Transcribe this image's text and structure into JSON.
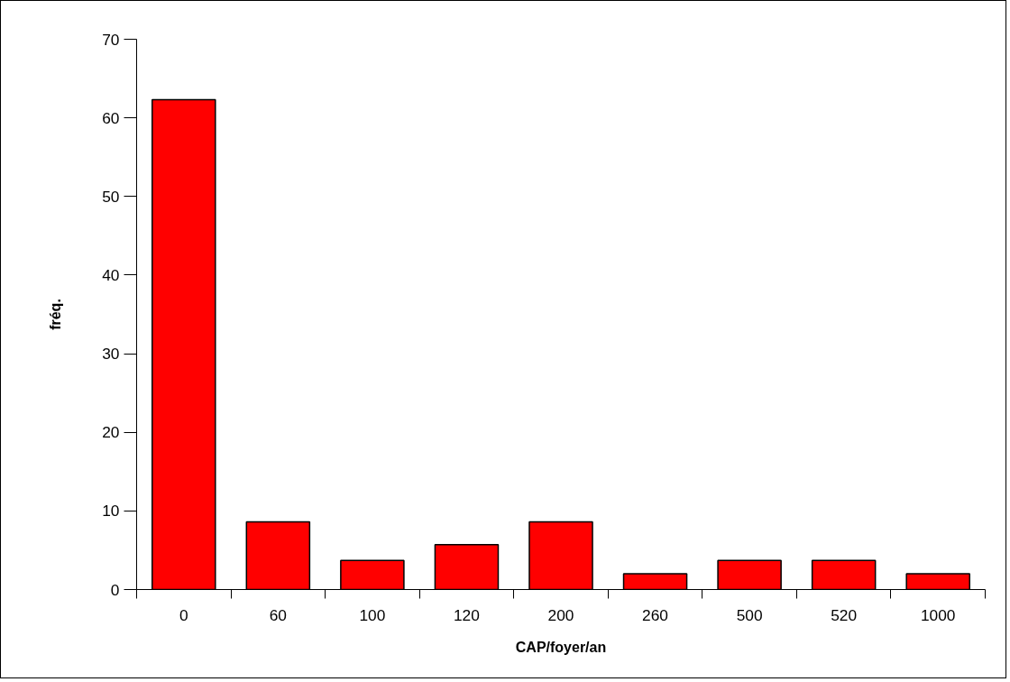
{
  "chart_data": {
    "type": "bar",
    "xlabel": "CAP/foyer/an",
    "ylabel": "fréq.",
    "categories": [
      "0",
      "60",
      "100",
      "120",
      "200",
      "260",
      "500",
      "520",
      "1000"
    ],
    "values": [
      62.3,
      8.6,
      3.7,
      5.7,
      8.6,
      2,
      3.7,
      3.7,
      2
    ],
    "color": "#ff0000",
    "ylim": [
      0,
      70
    ],
    "yticks": [
      0,
      10,
      20,
      30,
      40,
      50,
      60,
      70
    ],
    "grid": false
  }
}
